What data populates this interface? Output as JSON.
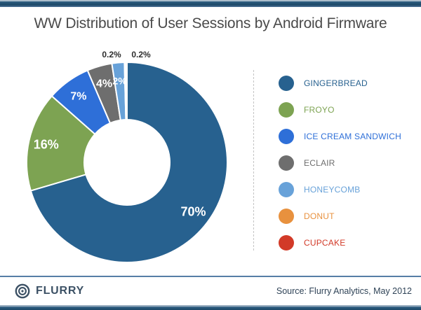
{
  "header": {
    "title": "WW Distribution of User Sessions by Android Firmware"
  },
  "chart_data": {
    "type": "pie",
    "subtype": "donut",
    "title": "WW Distribution of User Sessions by Android Firmware",
    "legend_position": "right",
    "start_angle_deg": 0,
    "direction": "clockwise",
    "donut_hole_ratio": 0.43,
    "series": [
      {
        "name": "GINGERBREAD",
        "value": 70,
        "display_label": "70%",
        "color": "#27618f"
      },
      {
        "name": "FROYO",
        "value": 16,
        "display_label": "16%",
        "color": "#7da352"
      },
      {
        "name": "ICE CREAM SANDWICH",
        "value": 7,
        "display_label": "7%",
        "color": "#2e6fd8"
      },
      {
        "name": "ECLAIR",
        "value": 4,
        "display_label": "4%",
        "color": "#6e6e6e"
      },
      {
        "name": "HONEYCOMB",
        "value": 2,
        "display_label": "2%",
        "color": "#68a2d9"
      },
      {
        "name": "DONUT",
        "value": 0.2,
        "display_label": "0.2%",
        "color": "#e8913e"
      },
      {
        "name": "CUPCAKE",
        "value": 0.2,
        "display_label": "0.2%",
        "color": "#d23a28"
      }
    ]
  },
  "footer": {
    "brand": "FLURRY",
    "source": "Source: Flurry Analytics, May 2012"
  },
  "colors": {
    "top_bar": "#1d4968",
    "title_text": "#4a4a4a",
    "divider": "#c4c4c4",
    "footer_line": "#567ea6",
    "brand_text": "#3c5165",
    "source_text": "#2f4357",
    "slice_label_inside": "#ffffff",
    "slice_label_outside": "#2e2e2e"
  }
}
